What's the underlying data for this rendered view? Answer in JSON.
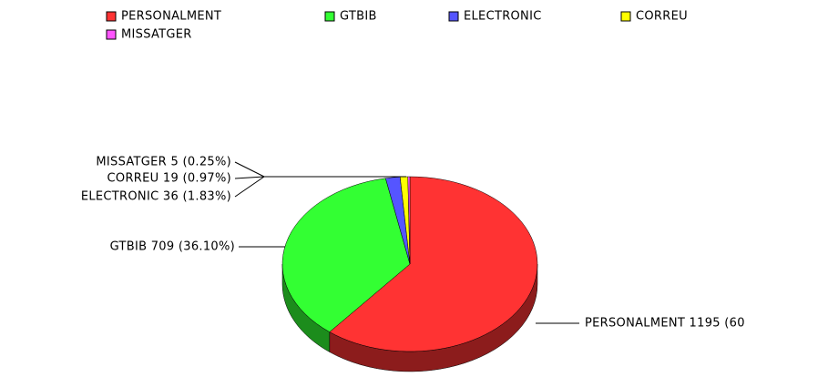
{
  "chart_data": {
    "type": "pie",
    "categories": [
      "PERSONALMENT",
      "GTBIB",
      "ELECTRONIC",
      "CORREU",
      "MISSATGER"
    ],
    "values": [
      1195,
      709,
      36,
      19,
      5
    ],
    "value_labels": [
      "PERSONALMENT 1195 (60",
      "GTBIB 709 (36.10%)",
      "ELECTRONIC 36 (1.83%)",
      "CORREU 19 (0.97%)",
      "MISSATGER 5 (0.25%)"
    ],
    "colors": [
      "#ff3333",
      "#33ff33",
      "#5555ff",
      "#ffff00",
      "#ff55ff"
    ],
    "legend": "top"
  }
}
